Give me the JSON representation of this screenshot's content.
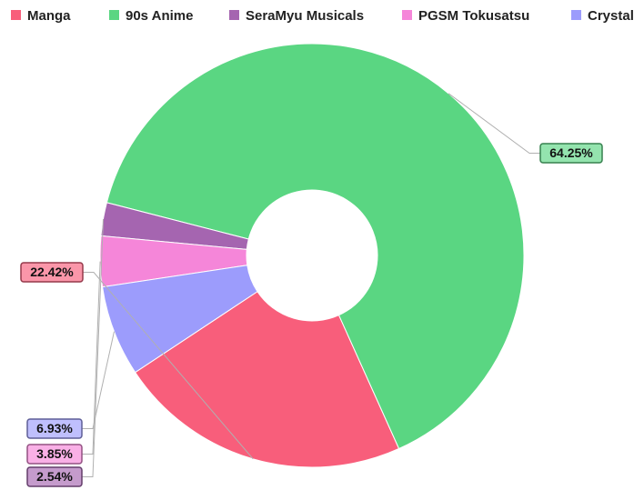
{
  "chart_data": {
    "type": "pie",
    "variant": "donut",
    "title": "",
    "legend_position": "top",
    "slices": [
      {
        "name": "Manga",
        "value": 22.42,
        "label": "22.42%",
        "color": "#f85e7b"
      },
      {
        "name": "90s Anime",
        "value": 64.25,
        "label": "64.25%",
        "color": "#5ad682"
      },
      {
        "name": "SeraMyu Musicals",
        "value": 2.54,
        "label": "2.54%",
        "color": "#a565b0"
      },
      {
        "name": "PGSM Tokusatsu",
        "value": 3.85,
        "label": "3.85%",
        "color": "#f586d9"
      },
      {
        "name": "Crystal",
        "value": 6.93,
        "label": "6.93%",
        "color": "#9c9cfc"
      }
    ]
  }
}
